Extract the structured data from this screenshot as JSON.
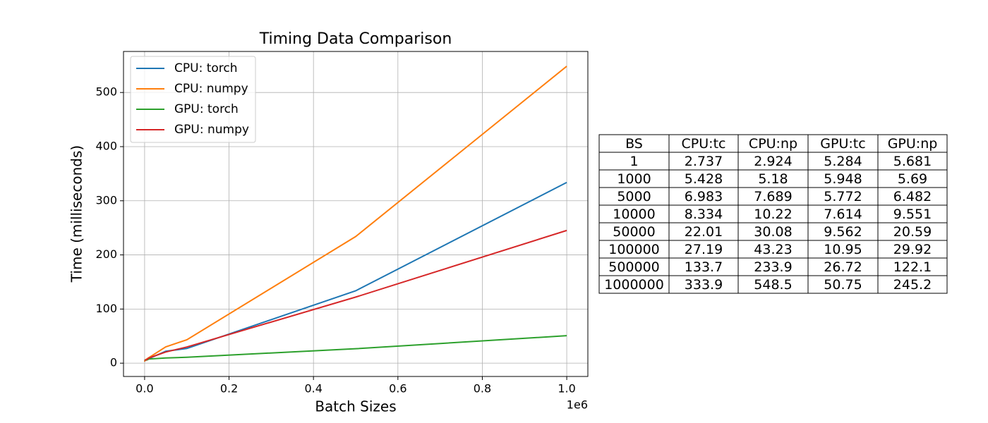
{
  "chart_data": {
    "type": "line",
    "title": "Timing Data Comparison",
    "xlabel": "Batch Sizes",
    "ylabel": "Time (milliseconds)",
    "x_offset_label": "1e6",
    "x": [
      1,
      1000,
      5000,
      10000,
      50000,
      100000,
      500000,
      1000000
    ],
    "series": [
      {
        "name": "CPU: torch",
        "color": "#1f77b4",
        "values": [
          2.737,
          5.428,
          6.983,
          8.334,
          22.01,
          27.19,
          133.7,
          333.9
        ]
      },
      {
        "name": "CPU: numpy",
        "color": "#ff7f0e",
        "values": [
          2.924,
          5.18,
          7.689,
          10.22,
          30.08,
          43.23,
          233.9,
          548.5
        ]
      },
      {
        "name": "GPU: torch",
        "color": "#2ca02c",
        "values": [
          5.284,
          5.948,
          5.772,
          7.614,
          9.562,
          10.95,
          26.72,
          50.75
        ]
      },
      {
        "name": "GPU: numpy",
        "color": "#d62728",
        "values": [
          5.681,
          5.69,
          6.482,
          9.551,
          20.59,
          29.92,
          122.1,
          245.2
        ]
      }
    ],
    "xlim": [
      -50000,
      1050000
    ],
    "xticks": [
      {
        "value": 0,
        "label": "0.0"
      },
      {
        "value": 200000,
        "label": "0.2"
      },
      {
        "value": 400000,
        "label": "0.4"
      },
      {
        "value": 600000,
        "label": "0.6"
      },
      {
        "value": 800000,
        "label": "0.8"
      },
      {
        "value": 1000000,
        "label": "1.0"
      }
    ],
    "ylim": [
      -24.55,
      575.79
    ],
    "yticks": [
      0,
      100,
      200,
      300,
      400,
      500
    ],
    "grid": true,
    "legend": "upper left"
  },
  "table": {
    "columns": [
      "BS",
      "CPU:tc",
      "CPU:np",
      "GPU:tc",
      "GPU:np"
    ]
  }
}
